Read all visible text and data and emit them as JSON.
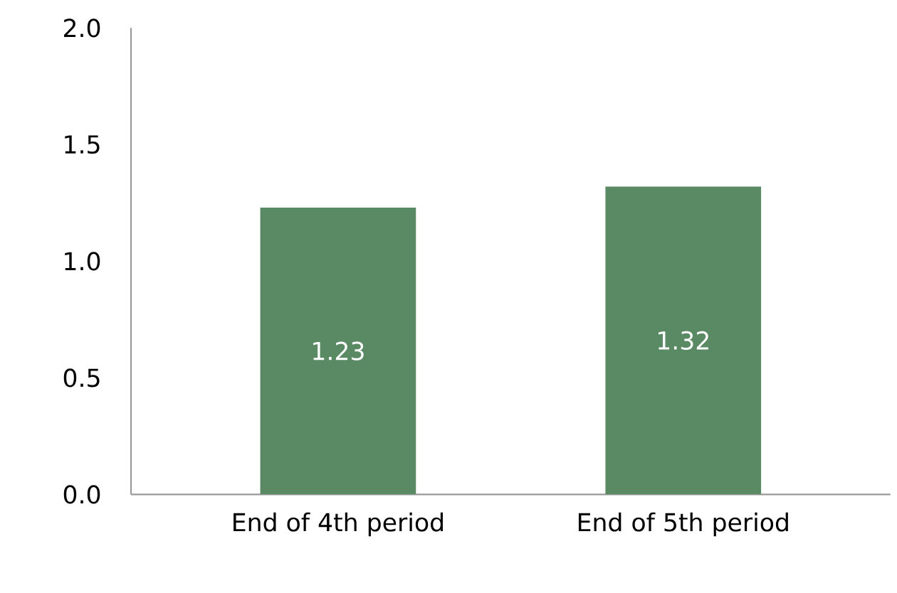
{
  "chart_data": {
    "type": "bar",
    "categories": [
      "End of 4th period",
      "End of 5th period"
    ],
    "values": [
      1.23,
      1.32
    ],
    "color": "#5a8a64",
    "ylim": [
      0,
      2
    ],
    "yticks": [
      {
        "value": 0,
        "label": "0.0"
      },
      {
        "value": 0.5,
        "label": "0.5"
      },
      {
        "value": 1,
        "label": "1.0"
      },
      {
        "value": 1.5,
        "label": "1.5"
      },
      {
        "value": 2,
        "label": "2.0"
      }
    ],
    "data_labels": true
  }
}
